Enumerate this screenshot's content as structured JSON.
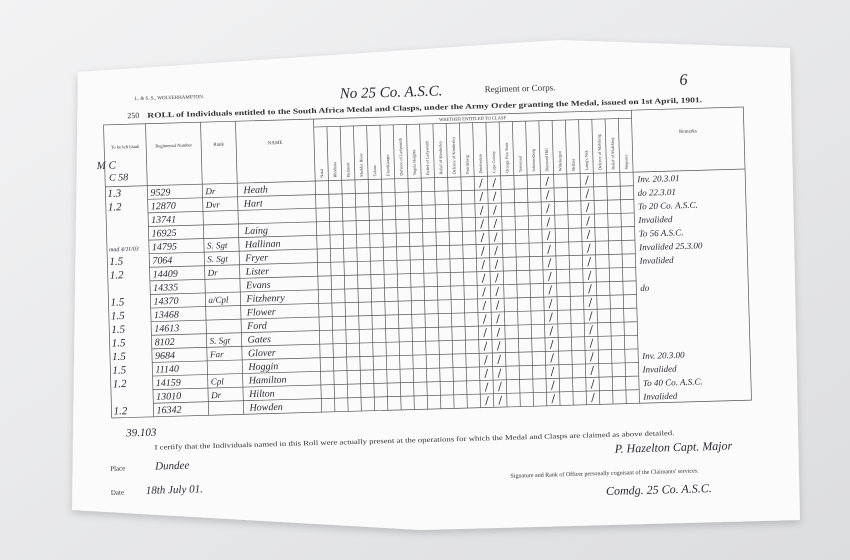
{
  "header": {
    "printer": "L. & S. S., WOLVERHAMPTON.",
    "serial": "250",
    "corps_handwritten": "No 25 Co. A.S.C.",
    "corps_label": "Regiment or Corps.",
    "page_number": "6",
    "title": "ROLL of Individuals entitled to the South Africa Medal and Clasps, under the Army Order granting the Medal, issued on 1st April, 1901."
  },
  "table": {
    "columns": {
      "blank": "To be left blank",
      "number": "Regimental Number",
      "rank": "Rank",
      "name": "NAME",
      "clasp_group": "WHETHER ENTITLED TO CLASP",
      "remarks": "Remarks"
    },
    "clasps": [
      "Natal",
      "Rhodesia",
      "Belmont",
      "Modder River",
      "Talana",
      "Elandslaagte",
      "Defence of Ladysmith",
      "Tugela Heights",
      "Relief of Ladysmith",
      "Relief of Kimberley",
      "Defence of Kimberley",
      "Paardeberg",
      "Driefontein",
      "Cape Colony",
      "Orange Free State",
      "Transvaal",
      "Johannesburg",
      "Diamond Hill",
      "Wittebergen",
      "Belfast",
      "Laing's Nek",
      "Defence of Mafeking",
      "Relief of Mafeking",
      "Wepener"
    ],
    "rows": [
      {
        "mark": "1.3",
        "number": "9529",
        "rank": "Dr",
        "name": "Heath",
        "remarks": "Inv. 20.3.01"
      },
      {
        "mark": "1.2",
        "number": "12870",
        "rank": "Dvr",
        "name": "Hart",
        "remarks": "do 22.3.01"
      },
      {
        "number": "13741",
        "remarks": "To 20 Co. A.S.C."
      },
      {
        "number": "16925",
        "name": "Laing",
        "remarks": "Invalided"
      },
      {
        "mark": "mad 4/11/03",
        "number": "14795",
        "rank": "S. Sgt",
        "name": "Hallinan",
        "remarks": "To 56 A.S.C."
      },
      {
        "mark": "1.5",
        "number": "7064",
        "rank": "S. Sgt",
        "name": "Fryer",
        "remarks": "Invalided 25.3.00"
      },
      {
        "mark": "1.2",
        "number": "14409",
        "rank": "Dr",
        "name": "Lister",
        "remarks": "Invalided"
      },
      {
        "number": "14335",
        "name": "Evans"
      },
      {
        "mark": "1.5",
        "number": "14370",
        "rank": "a/Cpl",
        "name": "Fitzhenry",
        "remarks": "do"
      },
      {
        "mark": "1.5",
        "number": "13468",
        "name": "Flower"
      },
      {
        "mark": "1.5",
        "number": "14613",
        "name": "Ford"
      },
      {
        "mark": "1.5",
        "number": "8102",
        "rank": "S. Sgt",
        "name": "Gates"
      },
      {
        "mark": "1.5",
        "number": "9684",
        "rank": "Far",
        "name": "Glover"
      },
      {
        "mark": "1.5",
        "number": "11140",
        "name": "Hoggin",
        "remarks": "Inv. 20.3.00"
      },
      {
        "mark": "1.2",
        "number": "14159",
        "rank": "Cpl",
        "name": "Hamilton",
        "remarks": "Invalided"
      },
      {
        "number": "13010",
        "rank": "Dr",
        "name": "Hilton",
        "remarks": "To 40 Co. A.S.C."
      },
      {
        "mark": "1.2",
        "number": "16342",
        "name": "Howden",
        "remarks": "Invalided"
      }
    ]
  },
  "margin_notes": {
    "top_left": "M C",
    "top_left_2": "C 58",
    "total": "39.103"
  },
  "footer": {
    "certificate": "I certify that the Individuals named in this Roll were actually present at the operations for which the Medal and Clasps are claimed as above detailed.",
    "place_label": "Place",
    "place": "Dundee",
    "date_label": "Date",
    "date": "18th July 01.",
    "signature": "P. Hazelton Capt. Major",
    "signature_label": "Signature and Rank of Officer personally cognisant of the Claimants' services.",
    "command": "Comdg. 25 Co. A.S.C."
  }
}
